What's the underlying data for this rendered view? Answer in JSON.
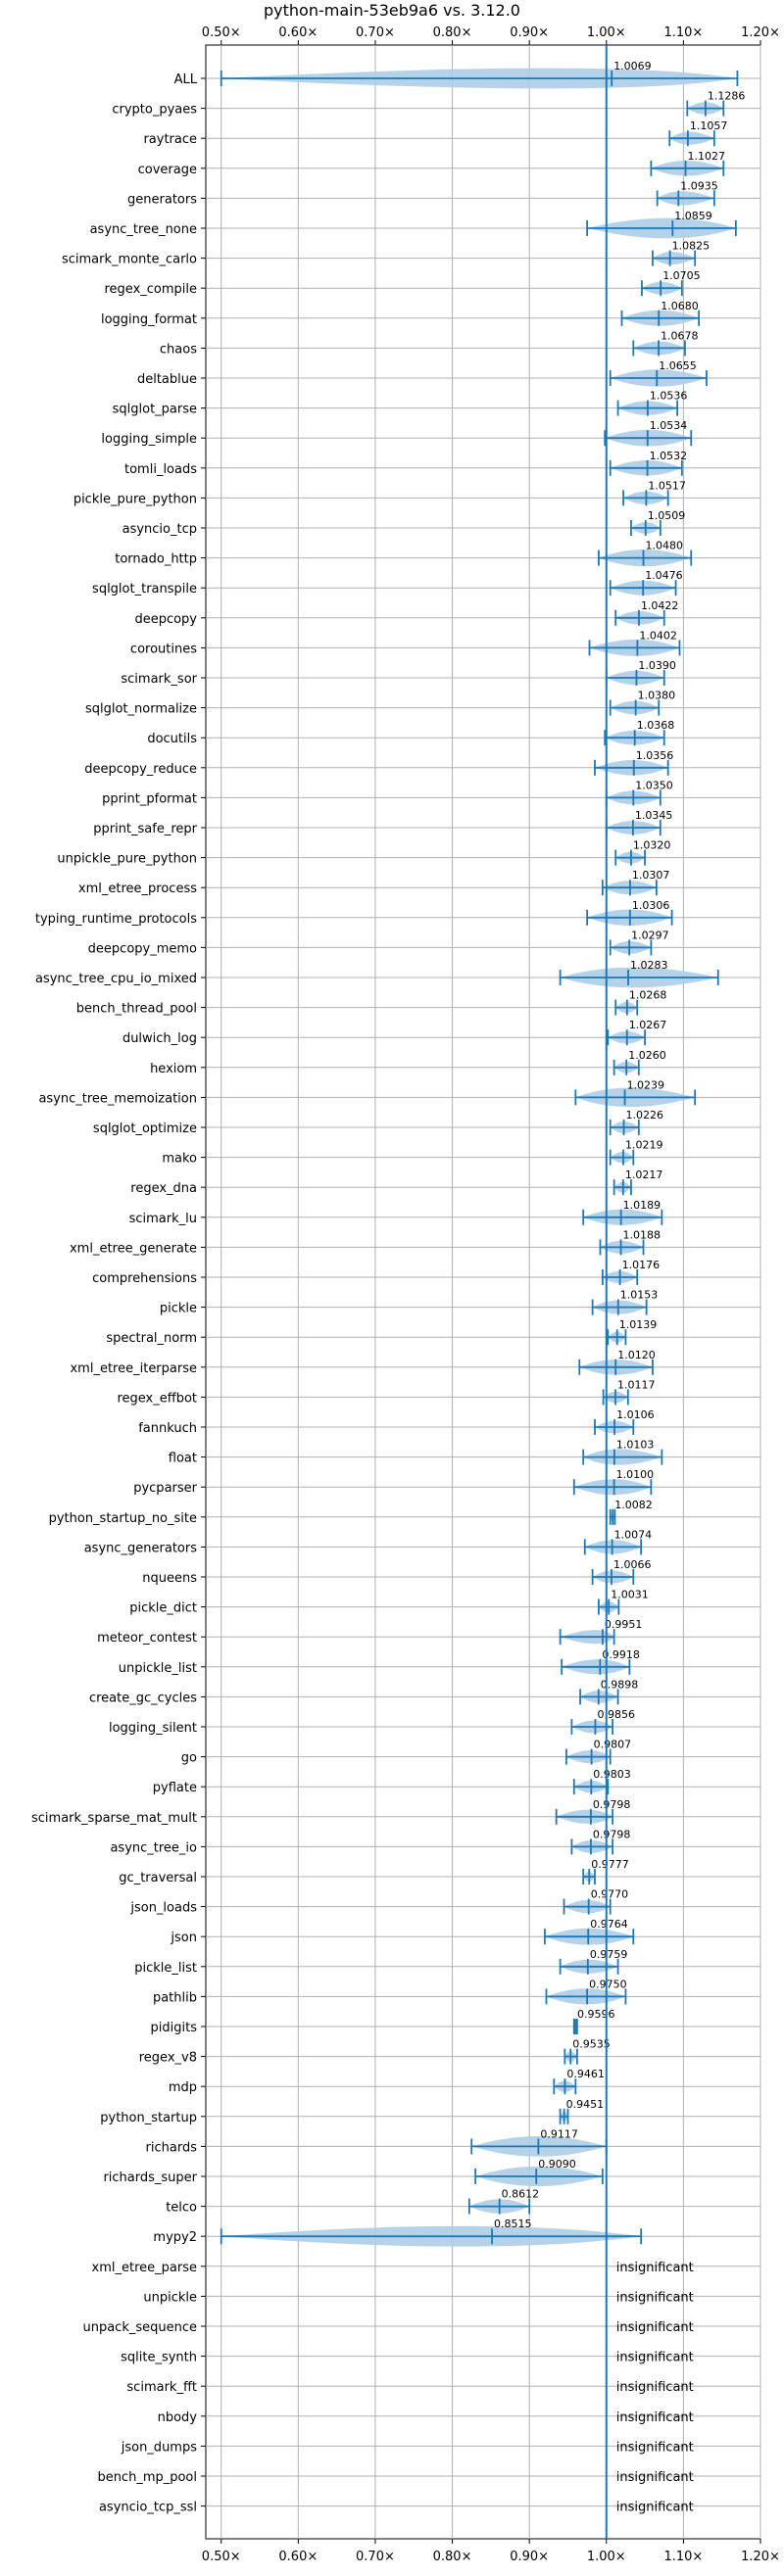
{
  "chart_data": {
    "type": "violin",
    "title": "python-main-53eb9a6 vs. 3.12.0",
    "xlabel": "",
    "ylabel": "",
    "xlim": [
      0.48,
      1.2
    ],
    "x_ticks": [
      0.5,
      0.6,
      0.7,
      0.8,
      0.9,
      1.0,
      1.1,
      1.2
    ],
    "x_tick_labels": [
      "0.50×",
      "0.60×",
      "0.70×",
      "0.80×",
      "0.90×",
      "1.00×",
      "1.10×",
      "1.20×"
    ],
    "grid": true,
    "reference_line": 1.0,
    "insignificant_label": "insignificant",
    "colors": {
      "body": "#aecde6",
      "line": "#1f77b4",
      "grid": "#b0b0b0"
    },
    "benchmarks": [
      {
        "name": "ALL",
        "value": 1.0069,
        "label": "1.0069",
        "min": 0.5,
        "max": 1.17
      },
      {
        "name": "crypto_pyaes",
        "value": 1.1286,
        "label": "1.1286",
        "min": 1.105,
        "max": 1.152
      },
      {
        "name": "raytrace",
        "value": 1.1057,
        "label": "1.1057",
        "min": 1.082,
        "max": 1.14
      },
      {
        "name": "coverage",
        "value": 1.1027,
        "label": "1.1027",
        "min": 1.058,
        "max": 1.152
      },
      {
        "name": "generators",
        "value": 1.0935,
        "label": "1.0935",
        "min": 1.066,
        "max": 1.14
      },
      {
        "name": "async_tree_none",
        "value": 1.0859,
        "label": "1.0859",
        "min": 0.975,
        "max": 1.168
      },
      {
        "name": "scimark_monte_carlo",
        "value": 1.0825,
        "label": "1.0825",
        "min": 1.06,
        "max": 1.115
      },
      {
        "name": "regex_compile",
        "value": 1.0705,
        "label": "1.0705",
        "min": 1.046,
        "max": 1.098
      },
      {
        "name": "logging_format",
        "value": 1.068,
        "label": "1.0680",
        "min": 1.02,
        "max": 1.12
      },
      {
        "name": "chaos",
        "value": 1.0678,
        "label": "1.0678",
        "min": 1.035,
        "max": 1.102
      },
      {
        "name": "deltablue",
        "value": 1.0655,
        "label": "1.0655",
        "min": 1.005,
        "max": 1.13
      },
      {
        "name": "sqlglot_parse",
        "value": 1.0536,
        "label": "1.0536",
        "min": 1.015,
        "max": 1.092
      },
      {
        "name": "logging_simple",
        "value": 1.0534,
        "label": "1.0534",
        "min": 0.998,
        "max": 1.11
      },
      {
        "name": "tomli_loads",
        "value": 1.0532,
        "label": "1.0532",
        "min": 1.005,
        "max": 1.098
      },
      {
        "name": "pickle_pure_python",
        "value": 1.0517,
        "label": "1.0517",
        "min": 1.022,
        "max": 1.08
      },
      {
        "name": "asyncio_tcp",
        "value": 1.0509,
        "label": "1.0509",
        "min": 1.032,
        "max": 1.07
      },
      {
        "name": "tornado_http",
        "value": 1.048,
        "label": "1.0480",
        "min": 0.99,
        "max": 1.11
      },
      {
        "name": "sqlglot_transpile",
        "value": 1.0476,
        "label": "1.0476",
        "min": 1.005,
        "max": 1.09
      },
      {
        "name": "deepcopy",
        "value": 1.0422,
        "label": "1.0422",
        "min": 1.012,
        "max": 1.075
      },
      {
        "name": "coroutines",
        "value": 1.0402,
        "label": "1.0402",
        "min": 0.978,
        "max": 1.095
      },
      {
        "name": "scimark_sor",
        "value": 1.039,
        "label": "1.0390",
        "min": 1.0,
        "max": 1.075
      },
      {
        "name": "sqlglot_normalize",
        "value": 1.038,
        "label": "1.0380",
        "min": 1.005,
        "max": 1.068
      },
      {
        "name": "docutils",
        "value": 1.0368,
        "label": "1.0368",
        "min": 0.998,
        "max": 1.075
      },
      {
        "name": "deepcopy_reduce",
        "value": 1.0356,
        "label": "1.0356",
        "min": 0.985,
        "max": 1.08
      },
      {
        "name": "pprint_pformat",
        "value": 1.035,
        "label": "1.0350",
        "min": 1.0,
        "max": 1.07
      },
      {
        "name": "pprint_safe_repr",
        "value": 1.0345,
        "label": "1.0345",
        "min": 1.0,
        "max": 1.07
      },
      {
        "name": "unpickle_pure_python",
        "value": 1.032,
        "label": "1.0320",
        "min": 1.012,
        "max": 1.05
      },
      {
        "name": "xml_etree_process",
        "value": 1.0307,
        "label": "1.0307",
        "min": 0.995,
        "max": 1.065
      },
      {
        "name": "typing_runtime_protocols",
        "value": 1.0306,
        "label": "1.0306",
        "min": 0.975,
        "max": 1.085
      },
      {
        "name": "deepcopy_memo",
        "value": 1.0297,
        "label": "1.0297",
        "min": 1.005,
        "max": 1.058
      },
      {
        "name": "async_tree_cpu_io_mixed",
        "value": 1.0283,
        "label": "1.0283",
        "min": 0.94,
        "max": 1.145
      },
      {
        "name": "bench_thread_pool",
        "value": 1.0268,
        "label": "1.0268",
        "min": 1.012,
        "max": 1.04
      },
      {
        "name": "dulwich_log",
        "value": 1.0267,
        "label": "1.0267",
        "min": 1.002,
        "max": 1.05
      },
      {
        "name": "hexiom",
        "value": 1.026,
        "label": "1.0260",
        "min": 1.01,
        "max": 1.042
      },
      {
        "name": "async_tree_memoization",
        "value": 1.0239,
        "label": "1.0239",
        "min": 0.96,
        "max": 1.115
      },
      {
        "name": "sqlglot_optimize",
        "value": 1.0226,
        "label": "1.0226",
        "min": 1.005,
        "max": 1.042
      },
      {
        "name": "mako",
        "value": 1.0219,
        "label": "1.0219",
        "min": 1.005,
        "max": 1.035
      },
      {
        "name": "regex_dna",
        "value": 1.0217,
        "label": "1.0217",
        "min": 1.01,
        "max": 1.032
      },
      {
        "name": "scimark_lu",
        "value": 1.0189,
        "label": "1.0189",
        "min": 0.97,
        "max": 1.072
      },
      {
        "name": "xml_etree_generate",
        "value": 1.0188,
        "label": "1.0188",
        "min": 0.992,
        "max": 1.048
      },
      {
        "name": "comprehensions",
        "value": 1.0176,
        "label": "1.0176",
        "min": 0.995,
        "max": 1.04
      },
      {
        "name": "pickle",
        "value": 1.0153,
        "label": "1.0153",
        "min": 0.982,
        "max": 1.052
      },
      {
        "name": "spectral_norm",
        "value": 1.0139,
        "label": "1.0139",
        "min": 1.002,
        "max": 1.025
      },
      {
        "name": "xml_etree_iterparse",
        "value": 1.012,
        "label": "1.0120",
        "min": 0.965,
        "max": 1.06
      },
      {
        "name": "regex_effbot",
        "value": 1.0117,
        "label": "1.0117",
        "min": 0.996,
        "max": 1.028
      },
      {
        "name": "fannkuch",
        "value": 1.0106,
        "label": "1.0106",
        "min": 0.985,
        "max": 1.035
      },
      {
        "name": "float",
        "value": 1.0103,
        "label": "1.0103",
        "min": 0.97,
        "max": 1.072
      },
      {
        "name": "pycparser",
        "value": 1.01,
        "label": "1.0100",
        "min": 0.958,
        "max": 1.058
      },
      {
        "name": "python_startup_no_site",
        "value": 1.0082,
        "label": "1.0082",
        "min": 1.005,
        "max": 1.011
      },
      {
        "name": "async_generators",
        "value": 1.0074,
        "label": "1.0074",
        "min": 0.972,
        "max": 1.045
      },
      {
        "name": "nqueens",
        "value": 1.0066,
        "label": "1.0066",
        "min": 0.982,
        "max": 1.035
      },
      {
        "name": "pickle_dict",
        "value": 1.0031,
        "label": "1.0031",
        "min": 0.99,
        "max": 1.016
      },
      {
        "name": "meteor_contest",
        "value": 0.9951,
        "label": "0.9951",
        "min": 0.94,
        "max": 1.01
      },
      {
        "name": "unpickle_list",
        "value": 0.9918,
        "label": "0.9918",
        "min": 0.942,
        "max": 1.03
      },
      {
        "name": "create_gc_cycles",
        "value": 0.9898,
        "label": "0.9898",
        "min": 0.966,
        "max": 1.015
      },
      {
        "name": "logging_silent",
        "value": 0.9856,
        "label": "0.9856",
        "min": 0.955,
        "max": 1.008
      },
      {
        "name": "go",
        "value": 0.9807,
        "label": "0.9807",
        "min": 0.948,
        "max": 1.005
      },
      {
        "name": "pyflate",
        "value": 0.9803,
        "label": "0.9803",
        "min": 0.958,
        "max": 1.002
      },
      {
        "name": "scimark_sparse_mat_mult",
        "value": 0.9798,
        "label": "0.9798",
        "min": 0.935,
        "max": 1.008
      },
      {
        "name": "async_tree_io",
        "value": 0.9798,
        "label": "0.9798",
        "min": 0.955,
        "max": 1.008
      },
      {
        "name": "gc_traversal",
        "value": 0.9777,
        "label": "0.9777",
        "min": 0.97,
        "max": 0.985
      },
      {
        "name": "json_loads",
        "value": 0.977,
        "label": "0.9770",
        "min": 0.945,
        "max": 1.005
      },
      {
        "name": "json",
        "value": 0.9764,
        "label": "0.9764",
        "min": 0.92,
        "max": 1.035
      },
      {
        "name": "pickle_list",
        "value": 0.9759,
        "label": "0.9759",
        "min": 0.94,
        "max": 1.015
      },
      {
        "name": "pathlib",
        "value": 0.975,
        "label": "0.9750",
        "min": 0.922,
        "max": 1.025
      },
      {
        "name": "pidigits",
        "value": 0.9596,
        "label": "0.9596",
        "min": 0.958,
        "max": 0.962
      },
      {
        "name": "regex_v8",
        "value": 0.9535,
        "label": "0.9535",
        "min": 0.946,
        "max": 0.962
      },
      {
        "name": "mdp",
        "value": 0.9461,
        "label": "0.9461",
        "min": 0.932,
        "max": 0.96
      },
      {
        "name": "python_startup",
        "value": 0.9451,
        "label": "0.9451",
        "min": 0.94,
        "max": 0.95
      },
      {
        "name": "richards",
        "value": 0.9117,
        "label": "0.9117",
        "min": 0.825,
        "max": 1.0
      },
      {
        "name": "richards_super",
        "value": 0.909,
        "label": "0.9090",
        "min": 0.83,
        "max": 0.995
      },
      {
        "name": "telco",
        "value": 0.8612,
        "label": "0.8612",
        "min": 0.822,
        "max": 0.9
      },
      {
        "name": "mypy2",
        "value": 0.8515,
        "label": "0.8515",
        "min": 0.5,
        "max": 1.045
      },
      {
        "name": "xml_etree_parse",
        "insignificant": true
      },
      {
        "name": "unpickle",
        "insignificant": true
      },
      {
        "name": "unpack_sequence",
        "insignificant": true
      },
      {
        "name": "sqlite_synth",
        "insignificant": true
      },
      {
        "name": "scimark_fft",
        "insignificant": true
      },
      {
        "name": "nbody",
        "insignificant": true
      },
      {
        "name": "json_dumps",
        "insignificant": true
      },
      {
        "name": "bench_mp_pool",
        "insignificant": true
      },
      {
        "name": "asyncio_tcp_ssl",
        "insignificant": true
      }
    ]
  }
}
